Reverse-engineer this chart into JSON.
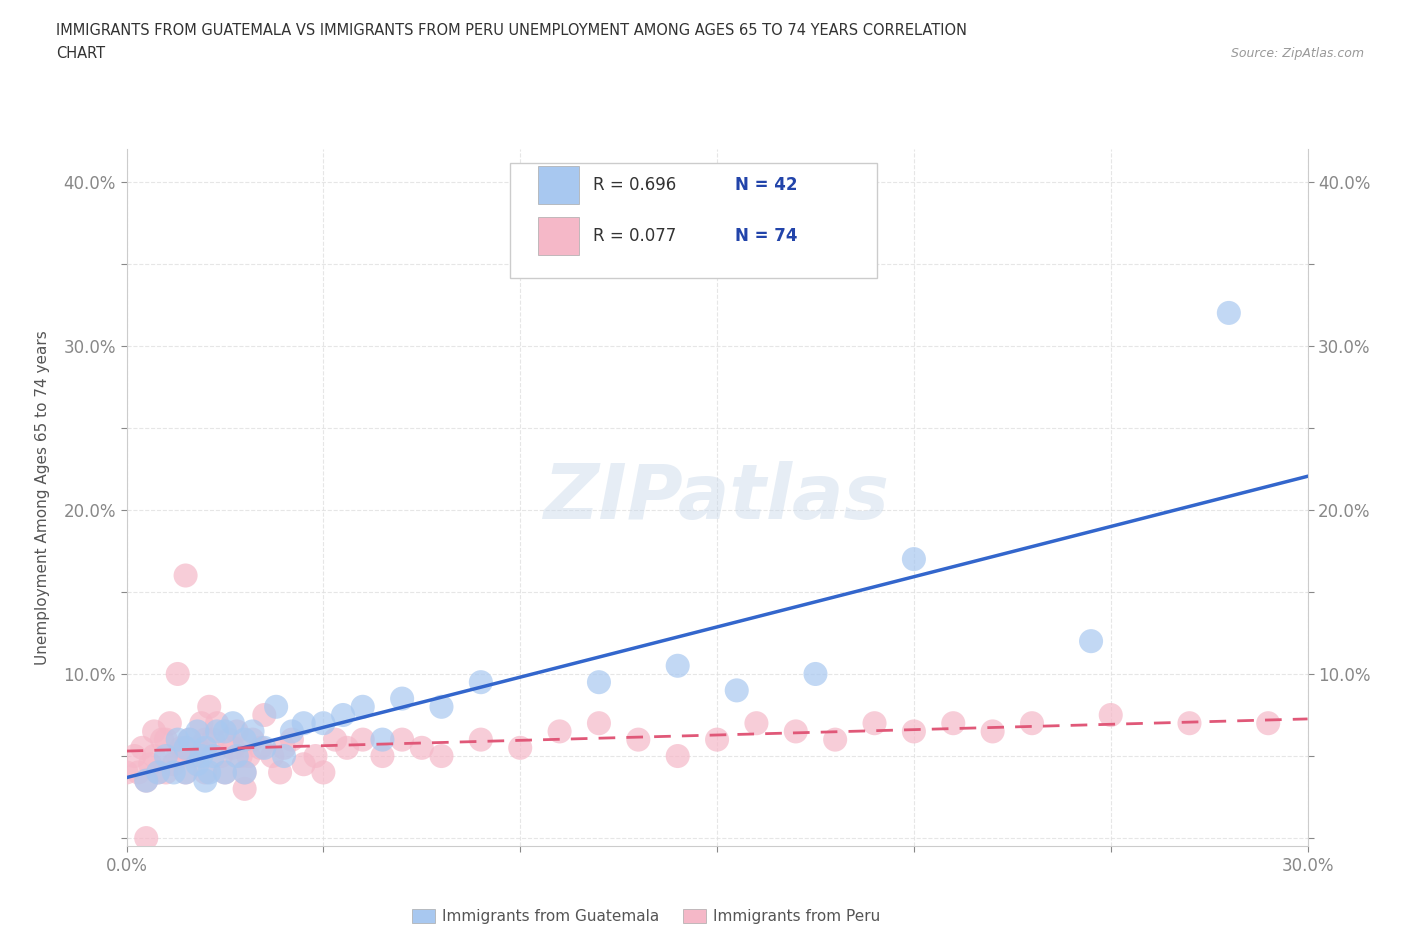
{
  "title_line1": "IMMIGRANTS FROM GUATEMALA VS IMMIGRANTS FROM PERU UNEMPLOYMENT AMONG AGES 65 TO 74 YEARS CORRELATION",
  "title_line2": "CHART",
  "source": "Source: ZipAtlas.com",
  "ylabel": "Unemployment Among Ages 65 to 74 years",
  "xlim": [
    0.0,
    0.3
  ],
  "ylim": [
    -0.005,
    0.42
  ],
  "xticks": [
    0.0,
    0.05,
    0.1,
    0.15,
    0.2,
    0.25,
    0.3
  ],
  "yticks": [
    0.0,
    0.05,
    0.1,
    0.15,
    0.2,
    0.25,
    0.3,
    0.35,
    0.4
  ],
  "xtick_labels": [
    "0.0%",
    "",
    "",
    "",
    "",
    "",
    "30.0%"
  ],
  "ytick_labels_left": [
    "",
    "",
    "10.0%",
    "",
    "20.0%",
    "",
    "30.0%",
    "",
    "40.0%"
  ],
  "ytick_labels_right": [
    "",
    "",
    "10.0%",
    "",
    "20.0%",
    "",
    "30.0%",
    "",
    "40.0%"
  ],
  "guatemala_color": "#a8c8f0",
  "peru_color": "#f5b8c8",
  "guatemala_line_color": "#3366cc",
  "peru_line_color": "#e05878",
  "legend_R1": "R = 0.696",
  "legend_N1": "N = 42",
  "legend_R2": "R = 0.077",
  "legend_N2": "N = 74",
  "watermark": "ZIPatlas",
  "guatemala_scatter_x": [
    0.005,
    0.008,
    0.01,
    0.012,
    0.013,
    0.015,
    0.015,
    0.016,
    0.018,
    0.018,
    0.019,
    0.02,
    0.02,
    0.021,
    0.022,
    0.023,
    0.025,
    0.025,
    0.027,
    0.028,
    0.03,
    0.03,
    0.032,
    0.035,
    0.038,
    0.04,
    0.042,
    0.045,
    0.05,
    0.055,
    0.06,
    0.065,
    0.07,
    0.08,
    0.09,
    0.12,
    0.14,
    0.155,
    0.175,
    0.2,
    0.245,
    0.28
  ],
  "guatemala_scatter_y": [
    0.035,
    0.04,
    0.05,
    0.04,
    0.06,
    0.04,
    0.055,
    0.06,
    0.045,
    0.065,
    0.05,
    0.035,
    0.055,
    0.04,
    0.05,
    0.065,
    0.04,
    0.065,
    0.07,
    0.05,
    0.04,
    0.06,
    0.065,
    0.055,
    0.08,
    0.05,
    0.065,
    0.07,
    0.07,
    0.075,
    0.08,
    0.06,
    0.085,
    0.08,
    0.095,
    0.095,
    0.105,
    0.09,
    0.1,
    0.17,
    0.12,
    0.32
  ],
  "peru_scatter_x": [
    0.0,
    0.002,
    0.003,
    0.004,
    0.005,
    0.006,
    0.007,
    0.007,
    0.008,
    0.009,
    0.01,
    0.01,
    0.011,
    0.012,
    0.013,
    0.013,
    0.014,
    0.015,
    0.015,
    0.015,
    0.016,
    0.017,
    0.018,
    0.019,
    0.02,
    0.02,
    0.021,
    0.022,
    0.023,
    0.024,
    0.025,
    0.026,
    0.027,
    0.028,
    0.029,
    0.03,
    0.031,
    0.032,
    0.034,
    0.035,
    0.037,
    0.039,
    0.04,
    0.042,
    0.045,
    0.048,
    0.05,
    0.053,
    0.056,
    0.06,
    0.065,
    0.07,
    0.075,
    0.08,
    0.09,
    0.1,
    0.11,
    0.12,
    0.13,
    0.14,
    0.15,
    0.16,
    0.17,
    0.18,
    0.19,
    0.2,
    0.21,
    0.22,
    0.23,
    0.25,
    0.27,
    0.29,
    0.03,
    0.005
  ],
  "peru_scatter_y": [
    0.04,
    0.05,
    0.04,
    0.055,
    0.035,
    0.045,
    0.05,
    0.065,
    0.04,
    0.06,
    0.04,
    0.06,
    0.07,
    0.045,
    0.05,
    0.1,
    0.055,
    0.04,
    0.055,
    0.16,
    0.06,
    0.05,
    0.055,
    0.07,
    0.04,
    0.06,
    0.08,
    0.06,
    0.07,
    0.05,
    0.04,
    0.06,
    0.055,
    0.065,
    0.05,
    0.04,
    0.05,
    0.06,
    0.055,
    0.075,
    0.05,
    0.04,
    0.055,
    0.06,
    0.045,
    0.05,
    0.04,
    0.06,
    0.055,
    0.06,
    0.05,
    0.06,
    0.055,
    0.05,
    0.06,
    0.055,
    0.065,
    0.07,
    0.06,
    0.05,
    0.06,
    0.07,
    0.065,
    0.06,
    0.07,
    0.065,
    0.07,
    0.065,
    0.07,
    0.075,
    0.07,
    0.07,
    0.03,
    0.0
  ],
  "background_color": "#ffffff",
  "grid_color": "#e0e0e0",
  "legend_text_color": "#333333",
  "legend_n_color": "#2244aa",
  "right_tick_color": "#3366cc"
}
